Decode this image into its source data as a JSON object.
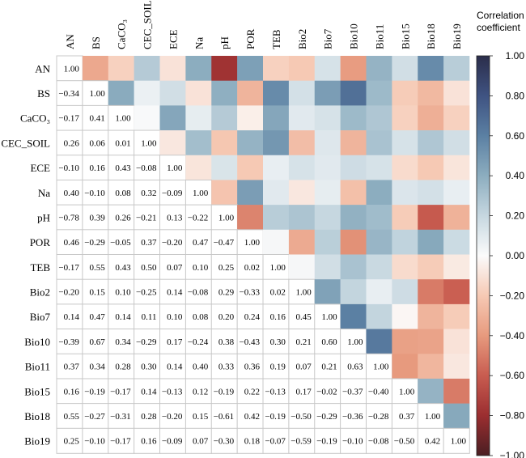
{
  "chart_data": {
    "type": "heatmap",
    "title": "",
    "variables": [
      "AN",
      "BS",
      "CaCO3",
      "CEC_SOIL",
      "ECE",
      "Na",
      "pH",
      "POR",
      "TEB",
      "Bio2",
      "Bio7",
      "Bio10",
      "Bio11",
      "Bio15",
      "Bio18",
      "Bio19"
    ],
    "variable_labels": [
      "AN",
      "BS",
      "CaCO₃",
      "CEC_SOIL",
      "ECE",
      "Na",
      "pH",
      "POR",
      "TEB",
      "Bio2",
      "Bio7",
      "Bio10",
      "Bio11",
      "Bio15",
      "Bio18",
      "Bio19"
    ],
    "lower_triangle_shows": "numeric values",
    "upper_triangle_shows": "colored cells (symmetric)",
    "matrix": [
      [
        1.0,
        -0.34,
        -0.17,
        0.26,
        -0.1,
        0.4,
        -0.78,
        0.46,
        -0.17,
        -0.2,
        0.14,
        -0.39,
        0.37,
        0.16,
        0.55,
        0.25
      ],
      [
        -0.34,
        1.0,
        0.41,
        0.06,
        0.16,
        -0.1,
        0.39,
        -0.29,
        0.55,
        0.15,
        0.47,
        0.67,
        0.34,
        -0.19,
        -0.27,
        -0.1
      ],
      [
        -0.17,
        0.41,
        1.0,
        0.01,
        0.43,
        0.08,
        0.26,
        -0.05,
        0.43,
        0.1,
        0.14,
        0.34,
        0.28,
        -0.17,
        -0.31,
        -0.17
      ],
      [
        0.26,
        0.06,
        0.01,
        1.0,
        -0.08,
        0.32,
        -0.21,
        0.37,
        0.5,
        -0.25,
        0.11,
        -0.29,
        0.3,
        0.14,
        0.28,
        0.16
      ],
      [
        -0.1,
        0.16,
        0.43,
        -0.08,
        1.0,
        -0.09,
        0.13,
        -0.2,
        0.07,
        0.14,
        0.1,
        0.17,
        0.14,
        -0.13,
        -0.2,
        -0.09
      ],
      [
        0.4,
        -0.1,
        0.08,
        0.32,
        -0.09,
        1.0,
        -0.22,
        0.47,
        0.1,
        -0.08,
        0.08,
        -0.24,
        0.4,
        0.12,
        0.15,
        0.07
      ],
      [
        -0.78,
        0.39,
        0.26,
        -0.21,
        0.13,
        -0.22,
        1.0,
        -0.47,
        0.25,
        0.29,
        0.2,
        0.38,
        0.33,
        -0.19,
        -0.61,
        -0.3
      ],
      [
        0.46,
        -0.29,
        -0.05,
        0.37,
        -0.2,
        0.47,
        -0.47,
        1.0,
        0.02,
        -0.33,
        0.24,
        -0.43,
        0.36,
        0.22,
        0.42,
        0.18
      ],
      [
        -0.17,
        0.55,
        0.43,
        0.5,
        0.07,
        0.1,
        0.25,
        0.02,
        1.0,
        0.02,
        0.16,
        0.3,
        0.19,
        -0.13,
        -0.19,
        -0.07
      ],
      [
        -0.2,
        0.15,
        0.1,
        -0.25,
        0.14,
        -0.08,
        0.29,
        -0.33,
        0.02,
        1.0,
        0.45,
        0.21,
        0.07,
        0.17,
        -0.5,
        -0.59
      ],
      [
        0.14,
        0.47,
        0.14,
        0.11,
        0.1,
        0.08,
        0.2,
        0.24,
        0.16,
        0.45,
        1.0,
        0.6,
        0.21,
        -0.02,
        -0.29,
        -0.19
      ],
      [
        -0.39,
        0.67,
        0.34,
        -0.29,
        0.17,
        -0.24,
        0.38,
        -0.43,
        0.3,
        0.21,
        0.6,
        1.0,
        0.63,
        -0.37,
        -0.36,
        -0.1
      ],
      [
        0.37,
        0.34,
        0.28,
        0.3,
        0.14,
        0.4,
        0.33,
        0.36,
        0.19,
        0.07,
        0.21,
        0.63,
        1.0,
        -0.4,
        -0.28,
        -0.08
      ],
      [
        0.16,
        -0.19,
        -0.17,
        0.14,
        -0.13,
        0.12,
        -0.19,
        0.22,
        -0.13,
        0.17,
        -0.02,
        -0.37,
        -0.4,
        1.0,
        0.37,
        -0.5
      ],
      [
        0.55,
        -0.27,
        -0.31,
        0.28,
        -0.2,
        0.15,
        -0.61,
        0.42,
        -0.19,
        -0.5,
        -0.29,
        -0.36,
        -0.28,
        0.37,
        1.0,
        0.42
      ],
      [
        0.25,
        -0.1,
        -0.17,
        0.16,
        -0.09,
        0.07,
        -0.3,
        0.18,
        -0.07,
        -0.59,
        -0.19,
        -0.1,
        -0.08,
        -0.5,
        0.42,
        1.0
      ]
    ],
    "colorbar": {
      "title_line1": "Correlation",
      "title_line2": "coefficient",
      "range": [
        -1.0,
        1.0
      ],
      "colormap": "RdBu (red = negative, blue = positive)",
      "ticks": [
        1.0,
        0.8,
        0.6,
        0.4,
        0.2,
        0.0,
        -0.2,
        -0.4,
        -0.6,
        -0.8,
        -1.0
      ],
      "tick_labels": [
        "1.00",
        "0.80",
        "0.60",
        "0.40",
        "0.20",
        "0.00",
        "−0.20",
        "−0.40",
        "−0.60",
        "−0.80",
        "−1.00"
      ],
      "placement": "right"
    },
    "colors": {
      "neg_max": "#67001f",
      "neg_strong": "#b2182b",
      "neg_mid": "#d6604d",
      "neg_light": "#f4a582",
      "neg_pale": "#fddbc7",
      "zero": "#f7f7f7",
      "pos_pale": "#d1e5f0",
      "pos_light": "#92c5de",
      "pos_mid": "#4393c3",
      "pos_strong": "#2166ac",
      "pos_max": "#053061",
      "grid_line": "#c8c8c8"
    }
  }
}
